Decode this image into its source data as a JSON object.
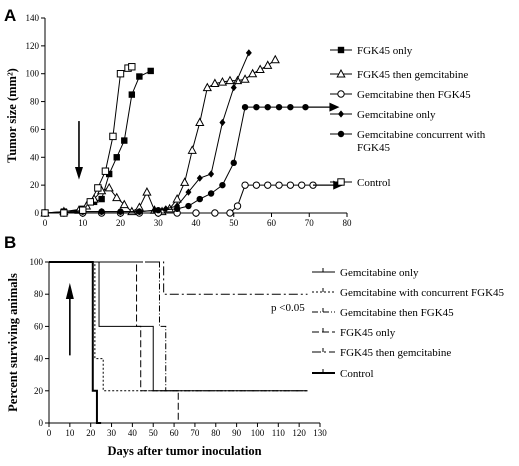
{
  "chart_data": [
    {
      "panel": "A",
      "type": "line",
      "ylabel": "Tumor size (mm²)",
      "xlabel": "",
      "xlim": [
        0,
        80
      ],
      "ylim": [
        0,
        140
      ],
      "xticks": [
        0,
        10,
        20,
        30,
        40,
        50,
        60,
        70,
        80
      ],
      "yticks": [
        0,
        20,
        40,
        60,
        80,
        100,
        120,
        140
      ],
      "legend_position": "right",
      "annotation": "arrow at day 9 (treatment start)",
      "series": [
        {
          "name": "FGK45 only",
          "marker": "filled-square",
          "dash": "solid",
          "x": [
            0,
            5,
            10,
            13,
            15,
            17,
            19,
            21,
            23,
            25,
            28
          ],
          "y": [
            0,
            1,
            3,
            8,
            10,
            28,
            40,
            52,
            85,
            98,
            102
          ]
        },
        {
          "name": "FGK45 then gemcitabine",
          "marker": "open-triangle",
          "dash": "solid",
          "x": [
            0,
            5,
            9,
            11,
            13,
            15,
            17,
            19,
            21,
            23,
            25,
            27,
            29,
            31,
            33,
            35,
            37,
            39,
            41,
            43,
            45,
            47,
            49,
            51,
            53,
            55,
            57,
            59,
            61
          ],
          "y": [
            0,
            1,
            2,
            5,
            10,
            16,
            18,
            11,
            6,
            1,
            4,
            15,
            2,
            1,
            3,
            10,
            22,
            45,
            65,
            90,
            93,
            94,
            95,
            95,
            96,
            100,
            103,
            106,
            110
          ]
        },
        {
          "name": "Gemcitabine then FGK45",
          "marker": "open-circle",
          "dash": "solid",
          "arrow": true,
          "x": [
            0,
            5,
            10,
            15,
            20,
            25,
            30,
            35,
            40,
            45,
            49,
            51,
            53,
            56,
            59,
            62,
            65,
            68,
            71
          ],
          "y": [
            0,
            0,
            0,
            0,
            0,
            0,
            0,
            0,
            0,
            0,
            0,
            5,
            20,
            20,
            20,
            20,
            20,
            20,
            20
          ]
        },
        {
          "name": "Gemcitabine only",
          "marker": "filled-diamond",
          "dash": "solid",
          "x": [
            0,
            5,
            10,
            15,
            20,
            25,
            29,
            32,
            35,
            38,
            41,
            44,
            47,
            50,
            54
          ],
          "y": [
            0,
            0,
            1,
            1,
            1,
            1,
            2,
            3,
            5,
            15,
            25,
            28,
            65,
            90,
            115
          ]
        },
        {
          "name": "Gemcitabine concurrent with FGK45",
          "marker": "filled-circle",
          "dash": "solid",
          "arrow": true,
          "x": [
            0,
            5,
            10,
            15,
            20,
            25,
            30,
            35,
            38,
            41,
            44,
            47,
            50,
            53,
            56,
            59,
            62,
            65,
            69
          ],
          "y": [
            0,
            0,
            1,
            1,
            1,
            1,
            2,
            3,
            5,
            10,
            14,
            20,
            36,
            76,
            76,
            76,
            76,
            76,
            76
          ]
        },
        {
          "name": "Control",
          "marker": "open-square",
          "dash": "solid",
          "x": [
            0,
            5,
            10,
            12,
            14,
            16,
            18,
            20,
            22,
            23
          ],
          "y": [
            0,
            0,
            2,
            8,
            18,
            30,
            55,
            100,
            104,
            105
          ]
        }
      ]
    },
    {
      "panel": "B",
      "type": "line",
      "step": true,
      "ylabel": "Percent surviving animals",
      "xlabel": "Days after tumor inoculation",
      "xlim": [
        0,
        130
      ],
      "ylim": [
        0,
        100
      ],
      "xticks": [
        0,
        10,
        20,
        30,
        40,
        50,
        60,
        70,
        80,
        90,
        100,
        110,
        120,
        130
      ],
      "yticks": [
        0,
        20,
        40,
        60,
        80,
        100
      ],
      "legend_position": "right",
      "annotation": "p <0.05",
      "series": [
        {
          "name": "Gemcitabine only",
          "dash": "solid",
          "x": [
            0,
            24,
            24,
            50,
            50,
            54,
            54,
            124
          ],
          "y": [
            100,
            100,
            60,
            60,
            20,
            20,
            20,
            20
          ]
        },
        {
          "name": "Gemcitabine with concurrent FGK45",
          "dash": "dotted",
          "x": [
            0,
            22,
            22,
            26,
            26,
            124
          ],
          "y": [
            100,
            100,
            40,
            40,
            20,
            20
          ]
        },
        {
          "name": "Gemcitabine then FGK45",
          "dash": "dashdot",
          "x": [
            0,
            53,
            53,
            56,
            56,
            124
          ],
          "y": [
            100,
            100,
            60,
            60,
            20,
            20
          ]
        },
        {
          "name": "FGK45 only",
          "dash": "longdash",
          "x": [
            0,
            42,
            42,
            44,
            44,
            59,
            59,
            62,
            62
          ],
          "y": [
            100,
            100,
            60,
            60,
            20,
            20,
            20,
            20,
            0
          ]
        },
        {
          "name": "FGK45 then gemcitabine",
          "dash": "dashdotlong",
          "x": [
            0,
            50,
            50,
            55,
            55,
            124
          ],
          "y": [
            100,
            100,
            100,
            100,
            80,
            80
          ]
        },
        {
          "name": "Control",
          "dash": "solid-thick",
          "x": [
            0,
            21,
            21,
            23,
            23,
            25,
            25
          ],
          "y": [
            100,
            100,
            20,
            20,
            0,
            0,
            0
          ]
        }
      ]
    }
  ],
  "labels": {
    "panel_a": "A",
    "panel_b": "B",
    "pvalue": "p <0.05"
  }
}
